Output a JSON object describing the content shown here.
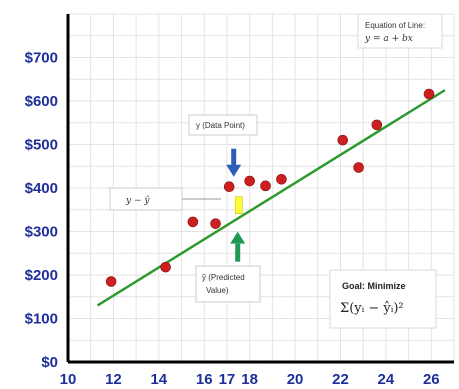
{
  "chart_data": {
    "type": "scatter",
    "title": "",
    "xlabel": "",
    "ylabel": "",
    "xlim": [
      10,
      27
    ],
    "ylim": [
      0,
      800
    ],
    "x_ticks": [
      10,
      12,
      14,
      16,
      17,
      18,
      20,
      22,
      24,
      26
    ],
    "y_ticks": [
      0,
      100,
      200,
      300,
      400,
      500,
      600,
      700
    ],
    "y_tick_labels": [
      "$0",
      "$100",
      "$200",
      "$300",
      "$400",
      "$500",
      "$600",
      "$700"
    ],
    "grid": true,
    "colors": {
      "points": "#cc1f1f",
      "line": "#2e9a2e",
      "yticks": "#1f2f9a",
      "xticks": "#1f2f9a",
      "arrow_down": "#2e5db8",
      "arrow_up": "#1f9a55",
      "residual_bar": "#ffff33"
    },
    "points": [
      {
        "x": 11.9,
        "y": 185
      },
      {
        "x": 14.3,
        "y": 218
      },
      {
        "x": 15.5,
        "y": 322
      },
      {
        "x": 16.5,
        "y": 318
      },
      {
        "x": 17.1,
        "y": 403
      },
      {
        "x": 18.0,
        "y": 416
      },
      {
        "x": 18.7,
        "y": 405
      },
      {
        "x": 19.4,
        "y": 420
      },
      {
        "x": 22.1,
        "y": 510
      },
      {
        "x": 22.8,
        "y": 447
      },
      {
        "x": 23.6,
        "y": 545
      },
      {
        "x": 25.9,
        "y": 616
      }
    ],
    "fit_line": {
      "x": [
        11.3,
        26.6
      ],
      "y": [
        130,
        625
      ]
    },
    "residual": {
      "x": 17.1,
      "y_actual": 403,
      "y_predicted": 318
    },
    "annotations": {
      "equation_title": "Equation of Line:",
      "equation": "y = a + bx",
      "data_point_label": "y (Data Point)",
      "residual_label": "y − ŷ",
      "predicted_label_line1": "ŷ (Predicted",
      "predicted_label_line2": "Value)",
      "goal_title": "Goal: Minimize",
      "goal_formula": "Σ(yᵢ − ŷᵢ)²"
    }
  }
}
